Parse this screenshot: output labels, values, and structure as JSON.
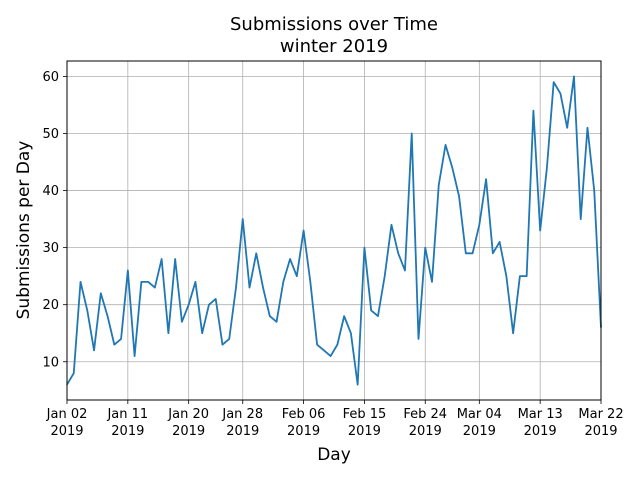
{
  "chart_data": {
    "type": "line",
    "title": "Submissions over Time",
    "subtitle": "winter 2019",
    "xlabel": "Day",
    "ylabel": "Submissions per Day",
    "x_start": "2019-01-02",
    "x_end": "2019-03-22",
    "xlim": [
      "2019-01-02",
      "2019-03-22"
    ],
    "ylim": [
      3.3,
      62.7
    ],
    "grid": true,
    "line_color": "#1f77b4",
    "x_ticks": [
      {
        "line1": "Jan 02",
        "line2": "2019",
        "date": "2019-01-02"
      },
      {
        "line1": "Jan 11",
        "line2": "2019",
        "date": "2019-01-11"
      },
      {
        "line1": "Jan 20",
        "line2": "2019",
        "date": "2019-01-20"
      },
      {
        "line1": "Jan 28",
        "line2": "2019",
        "date": "2019-01-28"
      },
      {
        "line1": "Feb 06",
        "line2": "2019",
        "date": "2019-02-06"
      },
      {
        "line1": "Feb 15",
        "line2": "2019",
        "date": "2019-02-15"
      },
      {
        "line1": "Feb 24",
        "line2": "2019",
        "date": "2019-02-24"
      },
      {
        "line1": "Mar 04",
        "line2": "2019",
        "date": "2019-03-04"
      },
      {
        "line1": "Mar 13",
        "line2": "2019",
        "date": "2019-03-13"
      },
      {
        "line1": "Mar 22",
        "line2": "2019",
        "date": "2019-03-22"
      }
    ],
    "y_ticks": [
      10,
      20,
      30,
      40,
      50,
      60
    ],
    "series": [
      {
        "x": [
          "2019-01-02",
          "2019-01-03",
          "2019-01-04",
          "2019-01-05",
          "2019-01-06",
          "2019-01-07",
          "2019-01-08",
          "2019-01-09",
          "2019-01-10",
          "2019-01-11",
          "2019-01-12",
          "2019-01-13",
          "2019-01-14",
          "2019-01-15",
          "2019-01-16",
          "2019-01-17",
          "2019-01-18",
          "2019-01-19",
          "2019-01-20",
          "2019-01-21",
          "2019-01-22",
          "2019-01-23",
          "2019-01-24",
          "2019-01-25",
          "2019-01-26",
          "2019-01-27",
          "2019-01-28",
          "2019-01-29",
          "2019-01-30",
          "2019-01-31",
          "2019-02-01",
          "2019-02-02",
          "2019-02-03",
          "2019-02-04",
          "2019-02-05",
          "2019-02-06",
          "2019-02-07",
          "2019-02-08",
          "2019-02-09",
          "2019-02-10",
          "2019-02-11",
          "2019-02-12",
          "2019-02-13",
          "2019-02-14",
          "2019-02-15",
          "2019-02-16",
          "2019-02-17",
          "2019-02-18",
          "2019-02-19",
          "2019-02-20",
          "2019-02-21",
          "2019-02-22",
          "2019-02-23",
          "2019-02-24",
          "2019-02-25",
          "2019-02-26",
          "2019-02-27",
          "2019-02-28",
          "2019-03-01",
          "2019-03-02",
          "2019-03-03",
          "2019-03-04",
          "2019-03-05",
          "2019-03-06",
          "2019-03-07",
          "2019-03-08",
          "2019-03-09",
          "2019-03-10",
          "2019-03-11",
          "2019-03-12",
          "2019-03-13",
          "2019-03-14",
          "2019-03-15",
          "2019-03-16",
          "2019-03-17",
          "2019-03-18",
          "2019-03-19",
          "2019-03-20",
          "2019-03-21",
          "2019-03-22"
        ],
        "y": [
          6,
          8,
          24,
          19,
          12,
          22,
          18,
          13,
          14,
          26,
          11,
          24,
          24,
          23,
          28,
          15,
          28,
          17,
          20,
          24,
          15,
          20,
          21,
          13,
          14,
          23,
          35,
          23,
          29,
          23,
          18,
          17,
          24,
          28,
          25,
          33,
          24,
          13,
          12,
          11,
          13,
          18,
          15,
          6,
          30,
          19,
          18,
          25,
          34,
          29,
          26,
          50,
          14,
          30,
          24,
          41,
          48,
          44,
          39,
          29,
          29,
          34,
          42,
          29,
          31,
          25,
          15,
          25,
          25,
          54,
          33,
          44,
          59,
          57,
          51,
          60,
          35,
          51,
          40,
          16
        ]
      }
    ]
  }
}
